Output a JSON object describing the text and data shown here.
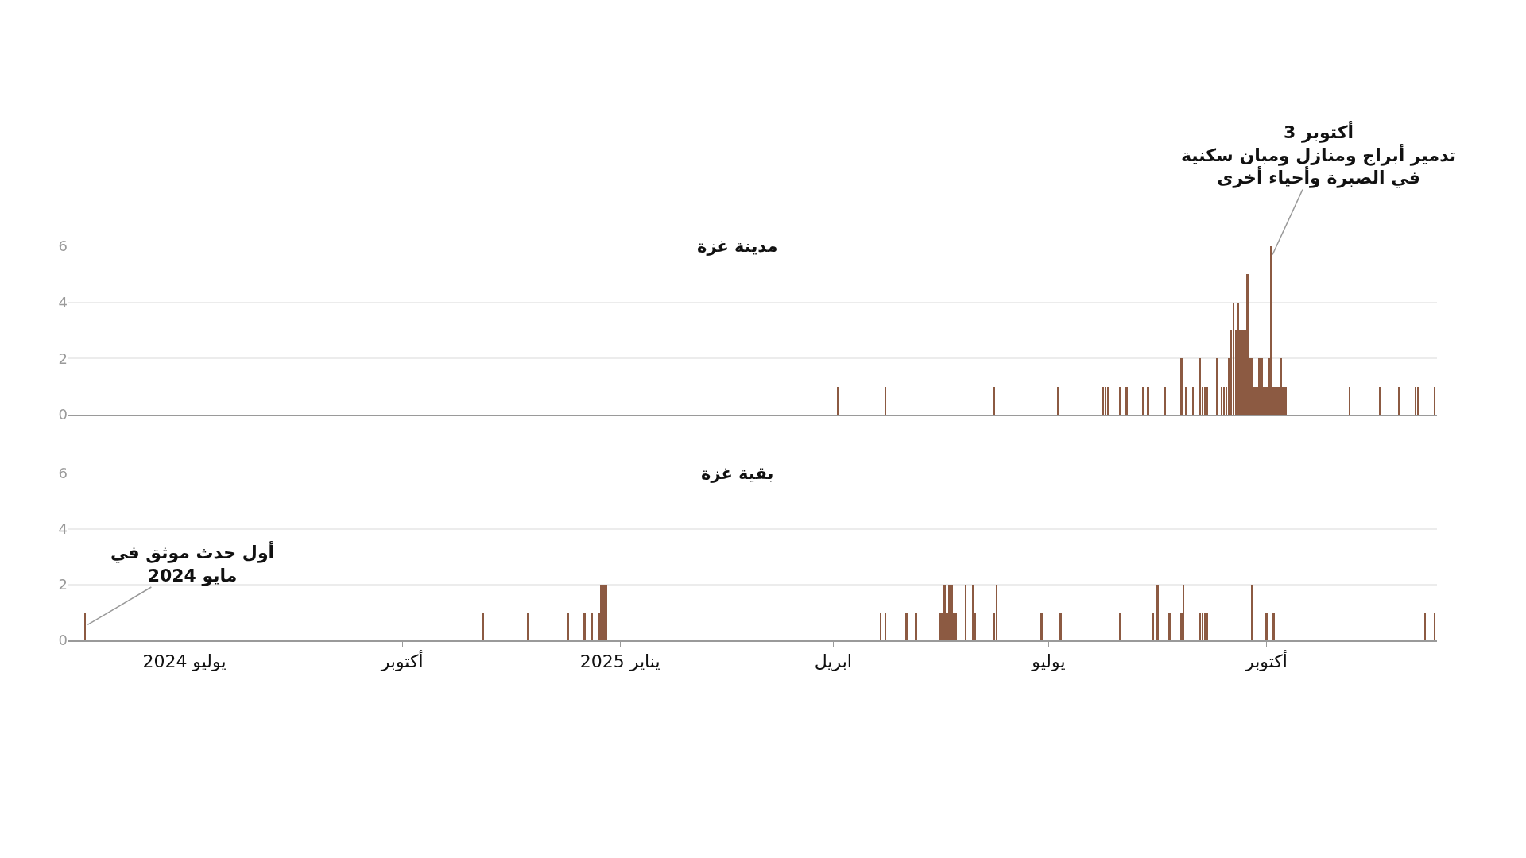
{
  "chart_data": [
    {
      "type": "bar",
      "title": "مدينة غزة",
      "color": "#8c5a42",
      "x": [
        "2025-04-03",
        "2025-04-23",
        "2025-06-08",
        "2025-07-05",
        "2025-07-24",
        "2025-07-25",
        "2025-07-26",
        "2025-07-31",
        "2025-08-03",
        "2025-08-10",
        "2025-08-12",
        "2025-08-19",
        "2025-08-26",
        "2025-08-28",
        "2025-08-31",
        "2025-09-03",
        "2025-09-04",
        "2025-09-05",
        "2025-09-06",
        "2025-09-10",
        "2025-09-12",
        "2025-09-13",
        "2025-09-14",
        "2025-09-15",
        "2025-09-16",
        "2025-09-17",
        "2025-09-18",
        "2025-09-19",
        "2025-09-20",
        "2025-09-21",
        "2025-09-22",
        "2025-09-23",
        "2025-09-24",
        "2025-09-25",
        "2025-09-26",
        "2025-09-27",
        "2025-09-28",
        "2025-09-29",
        "2025-09-30",
        "2025-10-01",
        "2025-10-02",
        "2025-10-03",
        "2025-10-04",
        "2025-10-05",
        "2025-10-06",
        "2025-10-07",
        "2025-10-08",
        "2025-10-09",
        "2025-11-05",
        "2025-11-18",
        "2025-11-26",
        "2025-12-03",
        "2025-12-04",
        "2025-12-11"
      ],
      "values": [
        1,
        1,
        1,
        1,
        1,
        1,
        1,
        1,
        1,
        1,
        1,
        1,
        2,
        1,
        1,
        2,
        1,
        1,
        1,
        2,
        1,
        1,
        1,
        2,
        3,
        4,
        3,
        4,
        3,
        3,
        3,
        5,
        2,
        2,
        1,
        1,
        2,
        2,
        1,
        1,
        2,
        6,
        1,
        1,
        1,
        2,
        1,
        1,
        1,
        1,
        1,
        1,
        1,
        1
      ],
      "xlim": [
        "2024-05-13",
        "2025-12-12"
      ],
      "ylim": [
        0,
        6
      ],
      "yticks": [
        0,
        2,
        4,
        6
      ],
      "grid": "y",
      "tick_labels": "y",
      "annotations": [
        {
          "text": "3 أكتوبر\nتدمير أبراج ومنازل ومبان سكنية\nفي الصبرة وأحياء أخرى",
          "x": "2025-10-03",
          "y": 5.6
        }
      ]
    },
    {
      "type": "bar",
      "title": "بقية غزة",
      "color": "#8c5a42",
      "x": [
        "2024-05-20",
        "2024-11-04",
        "2024-11-23",
        "2024-12-10",
        "2024-12-17",
        "2024-12-20",
        "2024-12-23",
        "2024-12-24",
        "2024-12-25",
        "2024-12-26",
        "2025-04-21",
        "2025-04-23",
        "2025-05-02",
        "2025-05-06",
        "2025-05-16",
        "2025-05-17",
        "2025-05-18",
        "2025-05-19",
        "2025-05-20",
        "2025-05-21",
        "2025-05-22",
        "2025-05-23",
        "2025-05-27",
        "2025-05-30",
        "2025-05-31",
        "2025-06-08",
        "2025-06-09",
        "2025-06-28",
        "2025-07-06",
        "2025-07-31",
        "2025-08-14",
        "2025-08-16",
        "2025-08-21",
        "2025-08-26",
        "2025-08-27",
        "2025-09-03",
        "2025-09-04",
        "2025-09-05",
        "2025-09-06",
        "2025-09-25",
        "2025-10-01",
        "2025-10-04",
        "2025-12-07",
        "2025-12-11"
      ],
      "values": [
        1,
        1,
        1,
        1,
        1,
        1,
        1,
        2,
        2,
        2,
        1,
        1,
        1,
        1,
        1,
        1,
        2,
        1,
        2,
        2,
        1,
        1,
        2,
        2,
        1,
        1,
        2,
        1,
        1,
        1,
        1,
        2,
        1,
        1,
        2,
        1,
        1,
        1,
        1,
        2,
        1,
        1,
        1,
        1
      ],
      "xlim": [
        "2024-05-13",
        "2025-12-12"
      ],
      "ylim": [
        0,
        6
      ],
      "yticks": [
        0,
        2,
        4,
        6
      ],
      "grid": "y",
      "xticks": [
        {
          "value": "2024-07-01",
          "label": "يوليو 2024"
        },
        {
          "value": "2024-10-01",
          "label": "أكتوبر"
        },
        {
          "value": "2025-01-01",
          "label": "يناير 2025"
        },
        {
          "value": "2025-04-01",
          "label": "ابريل"
        },
        {
          "value": "2025-07-01",
          "label": "يوليو"
        },
        {
          "value": "2025-10-01",
          "label": "أكتوبر"
        }
      ],
      "annotations": [
        {
          "text": "أول حدث موثق في\nمايو 2024",
          "x": "2024-05-20",
          "y": 0.5
        }
      ]
    }
  ]
}
